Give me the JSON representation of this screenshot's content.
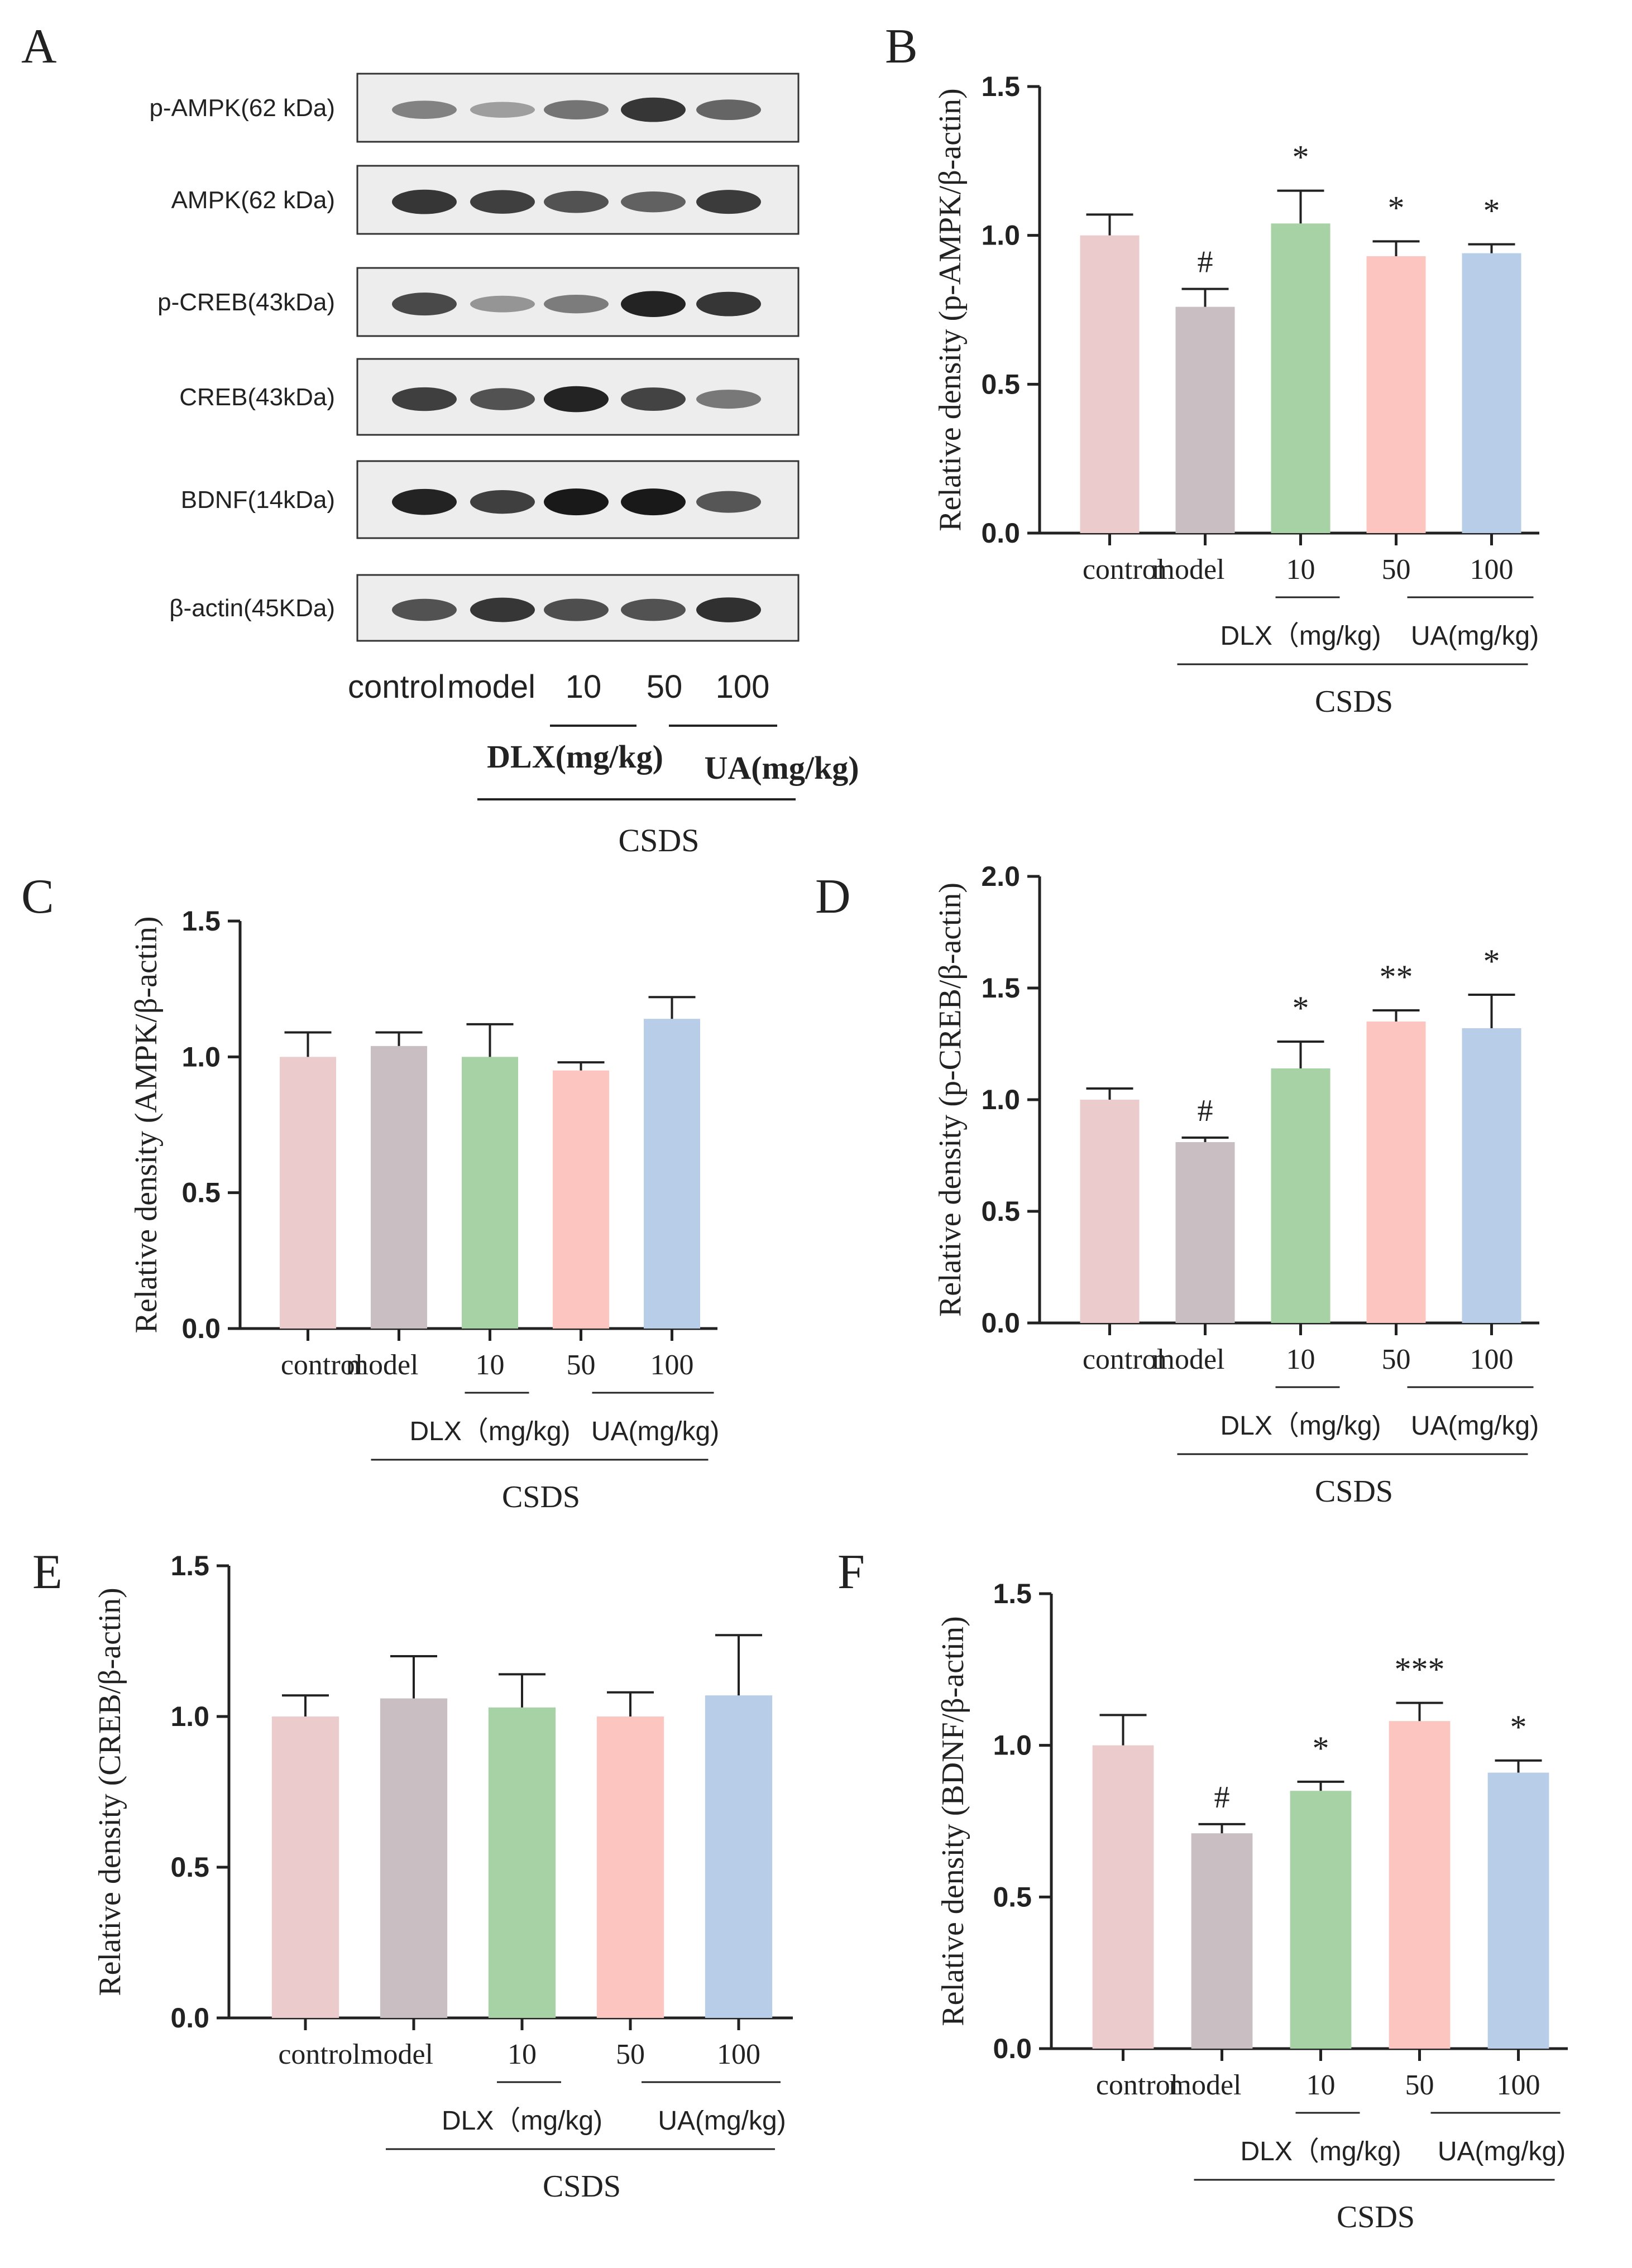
{
  "figure": {
    "panel_letters": [
      "A",
      "B",
      "C",
      "D",
      "E",
      "F"
    ]
  },
  "blot": {
    "proteins": [
      "p-AMPK(62 kDa)",
      "AMPK(62 kDa)",
      "p-CREB(43kDa)",
      "CREB(43kDa)",
      "BDNF(14kDa)",
      "β-actin(45KDa)"
    ],
    "band_intensity": [
      [
        0.45,
        0.3,
        0.52,
        0.85,
        0.6
      ],
      [
        0.85,
        0.8,
        0.7,
        0.62,
        0.82
      ],
      [
        0.75,
        0.35,
        0.48,
        0.95,
        0.85
      ],
      [
        0.8,
        0.7,
        0.95,
        0.78,
        0.5
      ],
      [
        0.95,
        0.8,
        1.0,
        1.0,
        0.68
      ],
      [
        0.7,
        0.85,
        0.72,
        0.7,
        0.88
      ]
    ],
    "lane_labels": [
      "control",
      "model",
      "10",
      "50",
      "100"
    ],
    "dlx_label": "DLX(mg/kg)",
    "ua_label": "UA(mg/kg)",
    "csds_label": "CSDS"
  },
  "chart_data": [
    {
      "panel": "B",
      "type": "bar",
      "categories": [
        "control",
        "model",
        "10",
        "50",
        "100"
      ],
      "values": [
        1.0,
        0.76,
        1.04,
        0.93,
        0.94
      ],
      "errors": [
        0.07,
        0.06,
        0.11,
        0.05,
        0.03
      ],
      "significance": [
        "",
        "#",
        "*",
        "*",
        "*"
      ],
      "ylabel": "Relative density (p-AMPK/β-actin)",
      "ylim": [
        0,
        1.5
      ],
      "yticks": [
        0.0,
        0.5,
        1.0,
        1.5
      ],
      "ytick_labels": [
        "0.0",
        "0.5",
        "1.0",
        "1.5"
      ],
      "dlx_label": "DLX（mg/kg)",
      "ua_label": "UA(mg/kg)",
      "csds_label": "CSDS"
    },
    {
      "panel": "C",
      "type": "bar",
      "categories": [
        "control",
        "model",
        "10",
        "50",
        "100"
      ],
      "values": [
        1.0,
        1.04,
        1.0,
        0.95,
        1.14
      ],
      "errors": [
        0.09,
        0.05,
        0.12,
        0.03,
        0.08
      ],
      "significance": [
        "",
        "",
        "",
        "",
        ""
      ],
      "ylabel": "Relative density (AMPK/β-actin)",
      "ylim": [
        0,
        1.5
      ],
      "yticks": [
        0.0,
        0.5,
        1.0,
        1.5
      ],
      "ytick_labels": [
        "0.0",
        "0.5",
        "1.0",
        "1.5"
      ],
      "dlx_label": "DLX（mg/kg)",
      "ua_label": "UA(mg/kg)",
      "csds_label": "CSDS"
    },
    {
      "panel": "D",
      "type": "bar",
      "categories": [
        "control",
        "model",
        "10",
        "50",
        "100"
      ],
      "values": [
        1.0,
        0.81,
        1.14,
        1.35,
        1.32
      ],
      "errors": [
        0.05,
        0.02,
        0.12,
        0.05,
        0.15
      ],
      "significance": [
        "",
        "#",
        "*",
        "**",
        "*"
      ],
      "ylabel": "Relative density (p-CREB/β-actin)",
      "ylim": [
        0,
        2.0
      ],
      "yticks": [
        0.0,
        0.5,
        1.0,
        1.5,
        2.0
      ],
      "ytick_labels": [
        "0.0",
        "0.5",
        "1.0",
        "1.5",
        "2.0"
      ],
      "dlx_label": "DLX（mg/kg)",
      "ua_label": "UA(mg/kg)",
      "csds_label": "CSDS"
    },
    {
      "panel": "E",
      "type": "bar",
      "categories": [
        "control",
        "model",
        "10",
        "50",
        "100"
      ],
      "values": [
        1.0,
        1.06,
        1.03,
        1.0,
        1.07
      ],
      "errors": [
        0.07,
        0.14,
        0.11,
        0.08,
        0.2
      ],
      "significance": [
        "",
        "",
        "",
        "",
        ""
      ],
      "ylabel": "Relative density (CREB/β-actin)",
      "ylim": [
        0,
        1.5
      ],
      "yticks": [
        0.0,
        0.5,
        1.0,
        1.5
      ],
      "ytick_labels": [
        "0.0",
        "0.5",
        "1.0",
        "1.5"
      ],
      "dlx_label": "DLX（mg/kg)",
      "ua_label": "UA(mg/kg)",
      "csds_label": "CSDS"
    },
    {
      "panel": "F",
      "type": "bar",
      "categories": [
        "control",
        "model",
        "10",
        "50",
        "100"
      ],
      "values": [
        1.0,
        0.71,
        0.85,
        1.08,
        0.91
      ],
      "errors": [
        0.1,
        0.03,
        0.03,
        0.06,
        0.04
      ],
      "significance": [
        "",
        "#",
        "*",
        "***",
        "*"
      ],
      "ylabel": "Relative density (BDNF/β-actin)",
      "ylim": [
        0,
        1.5
      ],
      "yticks": [
        0.0,
        0.5,
        1.0,
        1.5
      ],
      "ytick_labels": [
        "0.0",
        "0.5",
        "1.0",
        "1.5"
      ],
      "dlx_label": "DLX（mg/kg)",
      "ua_label": "UA(mg/kg)",
      "csds_label": "CSDS"
    }
  ],
  "bar_colors": [
    "#ebcbcb",
    "#c9bec2",
    "#a7d2a6",
    "#fcc5bf",
    "#b7cde8"
  ]
}
